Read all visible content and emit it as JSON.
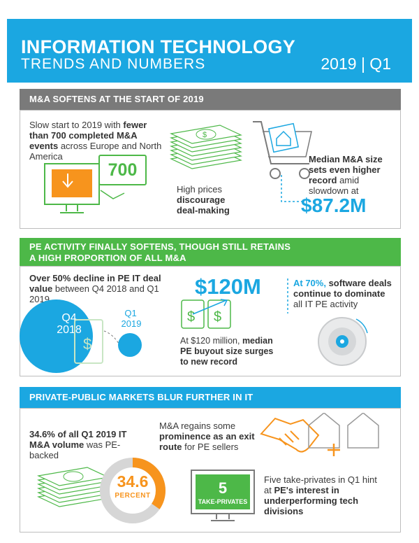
{
  "header": {
    "title": "INFORMATION TECHNOLOGY",
    "subtitle": "TRENDS AND NUMBERS",
    "date": "2019 | Q1"
  },
  "section1": {
    "title": "M&A SOFTENS AT THE START OF 2019",
    "stat1": {
      "pre": "Slow start to 2019 with ",
      "bold": "fewer than 700 completed M&A events",
      "post": " across Europe and North America"
    },
    "number_700": "700",
    "prices_text": {
      "pre": "High prices ",
      "bold": "discourage deal-making"
    },
    "median": {
      "bold": "Median M&A size sets even higher record",
      "post": " amid slowdown at"
    },
    "median_value": "$87.2M"
  },
  "section2": {
    "title_line1": "PE ACTIVITY FINALLY SOFTENS, THOUGH STILL RETAINS",
    "title_line2": "A HIGH PROPORTION OF ALL M&A",
    "decline": {
      "bold": "Over 50% decline in PE IT deal value",
      "post": " between Q4 2018 and Q1 2019"
    },
    "q4_label_1": "Q4",
    "q4_label_2": "2018",
    "q1_label_1": "Q1",
    "q1_label_2": "2019",
    "buyout_value": "$120M",
    "buyout_text": {
      "pre": "At $120 million, ",
      "bold": "median PE buyout size surges to new record"
    },
    "software": {
      "pct": "At 70%,",
      "bold1": " software deals continue to dominate",
      "post": " all IT PE activity"
    }
  },
  "section3": {
    "title": "PRIVATE-PUBLIC MARKETS BLUR FURTHER IN IT",
    "pe_backed": {
      "bold": "34.6% of all Q1 2019 IT M&A volume",
      "post": " was PE-backed"
    },
    "donut_value": "34.6",
    "donut_label": "PERCENT",
    "donut_fraction": 0.346,
    "exit": {
      "pre": "M&A regains some ",
      "bold": "prominence as an exit route",
      "post": " for PE sellers"
    },
    "takeprivate_count": "5",
    "takeprivate_label": "TAKE-PRIVATES",
    "five": {
      "pre": "Five take-privates in Q1 hint at ",
      "bold": "PE's interest in underperforming tech divisions"
    }
  },
  "colors": {
    "blue": "#1ba7e1",
    "green": "#4db848",
    "orange": "#f7941d",
    "gray_bar": "#7a7a7a"
  }
}
